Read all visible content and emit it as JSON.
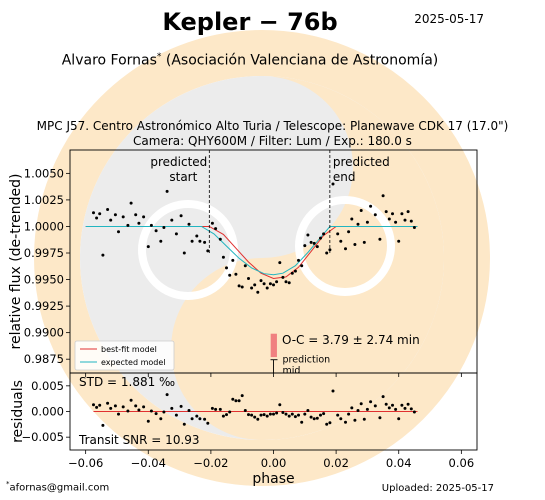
{
  "header": {
    "title": "Kepler − 76b",
    "date": "2025-05-17",
    "author": "Alvaro Fornas",
    "author_mark": "*",
    "affiliation": "(Asociación Valenciana de Astronomía)",
    "observatory": "MPC J57. Centro Astronómico Alto Turia / Telescope: Planewave CDK 17 (17.0\")",
    "camera": "Camera: QHY600M / Filter: Lum / Exp.: 180.0 s"
  },
  "footer": {
    "email_mark": "*",
    "email": "afornas@gmail.com",
    "uploaded": "Uploaded: 2025-05-17"
  },
  "colors": {
    "best_fit": "#e03030",
    "expected": "#22b5c0",
    "data": "#000000",
    "oc_bar": "#f08080",
    "watermark_ring": "#fde8c8",
    "watermark_grey": "#ececec"
  },
  "chart_data": [
    {
      "type": "scatter",
      "name": "light-curve",
      "xlim": [
        -0.065,
        0.065
      ],
      "ylim": [
        0.9862,
        1.0072
      ],
      "ylabel": "relative flux (de-trended)",
      "yticks": [
        0.9875,
        0.99,
        0.9925,
        0.995,
        0.9975,
        1.0,
        1.0025,
        1.005
      ],
      "ytick_labels": [
        "0.9875",
        "0.9900",
        "0.9925",
        "0.9950",
        "0.9975",
        "1.0000",
        "1.0025",
        "1.0050"
      ],
      "xticks": [
        -0.06,
        -0.04,
        -0.02,
        0.0,
        0.02,
        0.04,
        0.06
      ],
      "predicted_start": -0.0205,
      "predicted_end": 0.018,
      "predicted_start_label": [
        "predicted",
        "start"
      ],
      "predicted_end_label": [
        "predicted",
        "end"
      ],
      "legend": {
        "position": "lower-left",
        "entries": [
          "best-fit model",
          "expected model"
        ]
      },
      "oc": {
        "label": "O-C = 3.79 ± 2.74 min",
        "center": 0.0001,
        "width": 0.002,
        "ymin": 0.9877,
        "ymax": 0.9899
      },
      "prediction_mid": {
        "x": 0.0,
        "label": [
          "prediction",
          "mid"
        ]
      },
      "models": [
        {
          "name": "best-fit model",
          "x": [
            -0.06,
            -0.0205,
            -0.016,
            -0.012,
            -0.008,
            -0.004,
            0.0,
            0.004,
            0.008,
            0.012,
            0.016,
            0.02,
            0.046
          ],
          "y": [
            1.0,
            1.0,
            0.99925,
            0.99795,
            0.99665,
            0.9956,
            0.9951,
            0.99525,
            0.99615,
            0.99765,
            0.99915,
            1.0,
            1.0
          ]
        },
        {
          "name": "expected model",
          "x": [
            -0.06,
            -0.023,
            -0.019,
            -0.015,
            -0.011,
            -0.007,
            -0.003,
            0.0,
            0.003,
            0.007,
            0.011,
            0.015,
            0.018,
            0.046
          ],
          "y": [
            1.0,
            1.0,
            0.9993,
            0.99815,
            0.997,
            0.9961,
            0.99555,
            0.99545,
            0.9956,
            0.9963,
            0.99755,
            0.99895,
            1.0,
            1.0
          ]
        }
      ],
      "x": [
        -0.0575,
        -0.0565,
        -0.0555,
        -0.0545,
        -0.053,
        -0.052,
        -0.0505,
        -0.0495,
        -0.048,
        -0.0465,
        -0.0455,
        -0.044,
        -0.043,
        -0.0415,
        -0.04,
        -0.039,
        -0.0375,
        -0.036,
        -0.035,
        -0.034,
        -0.0325,
        -0.031,
        -0.0295,
        -0.0285,
        -0.027,
        -0.026,
        -0.0245,
        -0.0235,
        -0.022,
        -0.021,
        -0.0195,
        -0.0185,
        -0.017,
        -0.016,
        -0.015,
        -0.014,
        -0.013,
        -0.012,
        -0.011,
        -0.01,
        -0.009,
        -0.008,
        -0.007,
        -0.006,
        -0.005,
        -0.004,
        -0.003,
        -0.002,
        -0.001,
        0.0,
        0.001,
        0.002,
        0.003,
        0.004,
        0.005,
        0.006,
        0.007,
        0.008,
        0.009,
        0.01,
        0.011,
        0.012,
        0.013,
        0.014,
        0.015,
        0.016,
        0.017,
        0.018,
        0.019,
        0.0205,
        0.0215,
        0.023,
        0.024,
        0.025,
        0.026,
        0.027,
        0.028,
        0.029,
        0.03,
        0.031,
        0.0325,
        0.034,
        0.035,
        0.036,
        0.037,
        0.038,
        0.039,
        0.04,
        0.041,
        0.042,
        0.043,
        0.044,
        0.045
      ],
      "y": [
        1.0013,
        1.0008,
        1.0012,
        0.9973,
        1.0016,
        1.0006,
        1.0011,
        0.9995,
        1.0009,
        1.0001,
        1.0022,
        1.0011,
        1.0003,
        1.0009,
        0.9981,
        1.0001,
        0.9996,
        0.9986,
        0.9999,
        1.0033,
        1.0006,
        0.9993,
        1.001,
        0.9975,
        1.0002,
        0.9986,
        0.9991,
        0.9986,
        0.9985,
        0.9977,
        1.0003,
        0.9998,
        0.9988,
        0.9971,
        0.9961,
        0.9954,
        0.9968,
        0.9955,
        0.9944,
        0.9943,
        0.9963,
        0.9951,
        0.9942,
        0.9945,
        0.9938,
        0.9949,
        0.9946,
        0.9942,
        0.9946,
        0.9945,
        0.9948,
        0.9966,
        0.9952,
        0.9948,
        0.9947,
        0.9956,
        0.9958,
        0.9968,
        0.9963,
        0.9982,
        0.9992,
        0.9985,
        0.9984,
        0.9981,
        0.9989,
        0.9993,
        0.9975,
        0.9978,
        1.004,
        0.9993,
        0.9986,
        0.9979,
        0.9995,
        1.0007,
        0.9983,
        1.0002,
        1.0015,
        0.9985,
        1.0004,
        1.0019,
        1.0011,
        0.9988,
        1.0029,
        1.0014,
        1.0007,
        1.0012,
        1.0004,
        0.9986,
        1.0012,
        1.0006,
        1.0014,
        1.0005,
        0.9999
      ]
    },
    {
      "type": "scatter",
      "name": "residuals",
      "xlim": [
        -0.065,
        0.065
      ],
      "ylim": [
        -0.0075,
        0.0075
      ],
      "ylabel": "residuals",
      "xlabel": "phase",
      "yticks": [
        0.005,
        0.0,
        -0.005
      ],
      "ytick_labels": [
        "0.005",
        "0.000",
        "−0.005"
      ],
      "xticks": [
        -0.06,
        -0.04,
        -0.02,
        0.0,
        0.02,
        0.04,
        0.06
      ],
      "xtick_labels": [
        "−0.06",
        "−0.04",
        "−0.02",
        "0.00",
        "0.02",
        "0.04",
        "0.06"
      ],
      "std_label": "STD = 1.881 ‰",
      "snr_label": "Transit SNR = 10.93",
      "zero_line": 0.0,
      "x": [
        -0.0575,
        -0.0565,
        -0.0555,
        -0.0545,
        -0.053,
        -0.052,
        -0.0505,
        -0.0495,
        -0.048,
        -0.0465,
        -0.0455,
        -0.044,
        -0.043,
        -0.0415,
        -0.04,
        -0.039,
        -0.0375,
        -0.036,
        -0.035,
        -0.034,
        -0.0325,
        -0.031,
        -0.0295,
        -0.0285,
        -0.027,
        -0.026,
        -0.0245,
        -0.0235,
        -0.022,
        -0.021,
        -0.0195,
        -0.0185,
        -0.017,
        -0.016,
        -0.015,
        -0.014,
        -0.013,
        -0.012,
        -0.011,
        -0.01,
        -0.009,
        -0.008,
        -0.007,
        -0.006,
        -0.005,
        -0.004,
        -0.003,
        -0.002,
        -0.001,
        0.0,
        0.001,
        0.002,
        0.003,
        0.004,
        0.005,
        0.006,
        0.007,
        0.008,
        0.009,
        0.01,
        0.011,
        0.012,
        0.013,
        0.014,
        0.015,
        0.016,
        0.017,
        0.018,
        0.019,
        0.0205,
        0.0215,
        0.023,
        0.024,
        0.025,
        0.026,
        0.027,
        0.028,
        0.029,
        0.03,
        0.031,
        0.0325,
        0.034,
        0.035,
        0.036,
        0.037,
        0.038,
        0.039,
        0.04,
        0.041,
        0.042,
        0.043,
        0.044,
        0.045
      ],
      "y": [
        0.0013,
        0.0008,
        0.0012,
        -0.0027,
        0.0016,
        0.0006,
        0.0011,
        -0.0005,
        0.0009,
        0.0001,
        0.0022,
        0.0011,
        0.0003,
        0.0009,
        -0.0019,
        0.0001,
        -0.0004,
        -0.0014,
        -0.0001,
        0.0033,
        0.0006,
        -0.0007,
        0.001,
        -0.0025,
        0.0002,
        -0.0014,
        -0.0009,
        -0.0014,
        -0.0015,
        -0.0023,
        0.0006,
        0.0004,
        0.0004,
        -0.0009,
        -0.0006,
        -0.0001,
        0.0024,
        0.0021,
        0.0021,
        0.0031,
        0.0002,
        -0.0006,
        -0.0007,
        -0.0011,
        -0.0015,
        -0.0007,
        -0.0006,
        -0.0009,
        -0.0005,
        -0.0005,
        -0.0003,
        0.0013,
        -0.0002,
        -0.0005,
        -0.0009,
        -0.0005,
        -0.001,
        -0.0007,
        -0.0021,
        -0.0005,
        0.0002,
        -0.0011,
        -0.0014,
        -0.0013,
        -0.0007,
        -0.0004,
        -0.0025,
        -0.0022,
        0.004,
        -0.0007,
        -0.0014,
        -0.0021,
        -0.0005,
        0.0007,
        -0.0017,
        0.0002,
        0.0015,
        -0.0015,
        0.0004,
        0.0019,
        0.0011,
        -0.0012,
        0.0029,
        0.0014,
        0.0007,
        0.0012,
        0.0004,
        -0.0014,
        0.0012,
        0.0006,
        0.0014,
        0.0005,
        -0.0001
      ]
    }
  ]
}
